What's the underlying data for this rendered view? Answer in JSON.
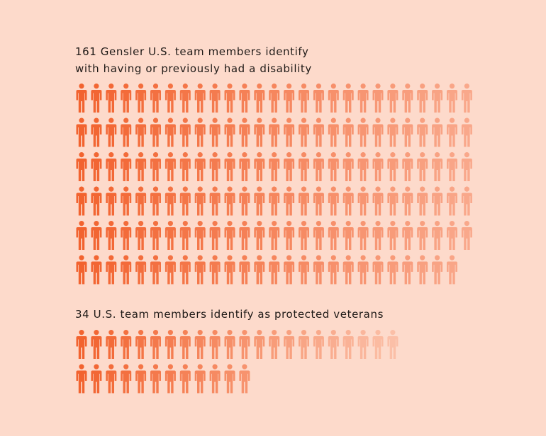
{
  "colors": {
    "background": "#fddacb",
    "text": "#1f1a17",
    "icon_start": "#f2632f",
    "icon_end": "#f9a88b",
    "icon_end_light": "#fbbfa7"
  },
  "chart_data": [
    {
      "type": "pictogram",
      "title_line1": "161 Gensler U.S. team members identify",
      "title_line2": "with having or previously had a disability",
      "value": 161,
      "icons_per_row": 27,
      "icon_name": "person-icon"
    },
    {
      "type": "pictogram",
      "title": "34 U.S. team members identify as protected veterans",
      "value": 34,
      "icons_per_row": 22,
      "icon_name": "person-icon"
    }
  ]
}
